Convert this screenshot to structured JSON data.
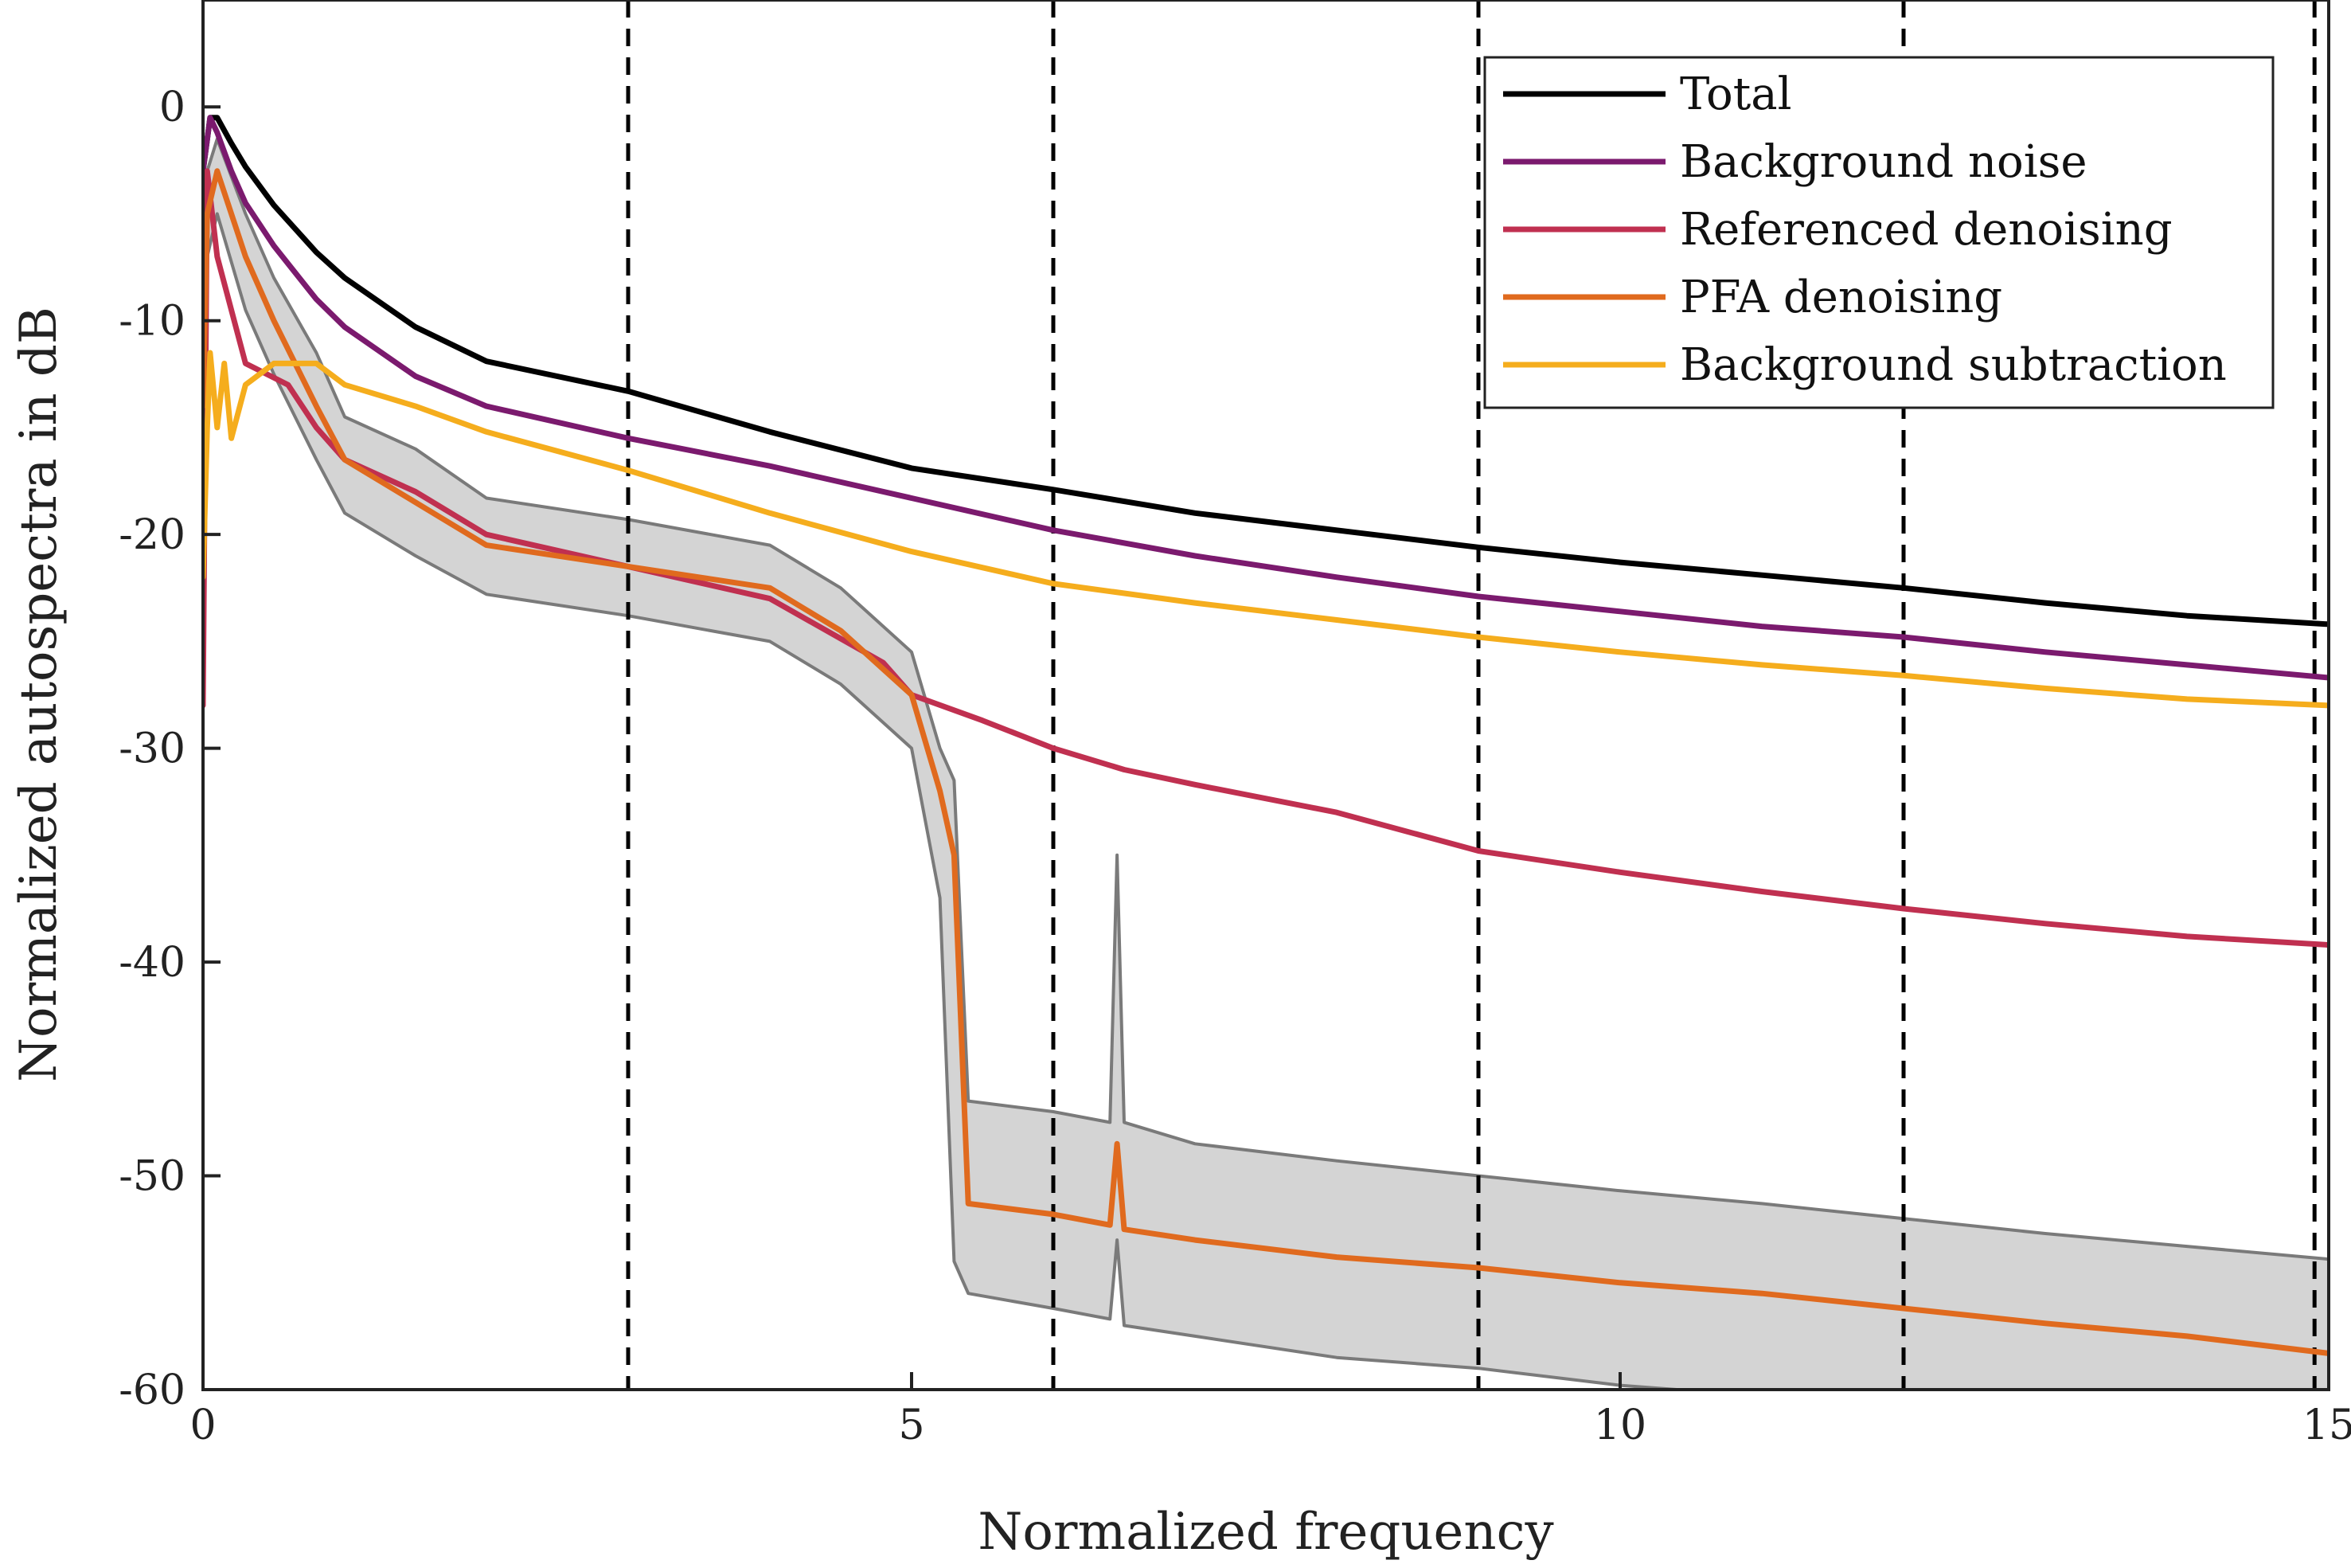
{
  "chart_data": {
    "type": "line",
    "title": "",
    "xlabel": "Normalized frequency",
    "ylabel": "Normalized autospectra in dB",
    "xlim": [
      0,
      15
    ],
    "ylim": [
      -60,
      5
    ],
    "x_ticks": [
      0,
      5,
      10,
      15
    ],
    "x_tick_labels": [
      "0",
      "5",
      "10",
      "15"
    ],
    "y_ticks": [
      0,
      -10,
      -20,
      -30,
      -40,
      -50,
      -60
    ],
    "y_tick_labels": [
      "0",
      "-10",
      "-20",
      "-30",
      "-40",
      "-50",
      "-60"
    ],
    "grid": false,
    "legend_position": "top-right",
    "vertical_dashed_lines_x": [
      3,
      6,
      9,
      12,
      14.9
    ],
    "series": [
      {
        "name": "Total",
        "color": "#000000",
        "x": [
          0,
          0.05,
          0.1,
          0.2,
          0.3,
          0.5,
          0.8,
          1.0,
          1.5,
          2.0,
          3.0,
          4.0,
          5.0,
          6.0,
          7.0,
          8.0,
          9.0,
          10.0,
          11.0,
          12.0,
          13.0,
          14.0,
          15.0
        ],
        "y": [
          -3,
          -0.5,
          -0.5,
          -1.7,
          -2.8,
          -4.6,
          -6.8,
          -8,
          -10.3,
          -11.9,
          -13.3,
          -15.2,
          -16.9,
          -17.9,
          -19,
          -19.8,
          -20.6,
          -21.3,
          -21.9,
          -22.5,
          -23.2,
          -23.8,
          -24.2
        ]
      },
      {
        "name": "Background noise",
        "color": "#7b1a6e",
        "x": [
          0,
          0.05,
          0.1,
          0.2,
          0.3,
          0.5,
          0.8,
          1.0,
          1.5,
          2.0,
          3.0,
          4.0,
          5.0,
          6.0,
          7.0,
          8.0,
          9.0,
          10.0,
          11.0,
          12.0,
          13.0,
          14.0,
          15.0
        ],
        "y": [
          -3,
          -0.5,
          -1.2,
          -3,
          -4.5,
          -6.5,
          -9,
          -10.3,
          -12.6,
          -14,
          -15.5,
          -16.8,
          -18.3,
          -19.8,
          -21,
          -22,
          -22.9,
          -23.6,
          -24.3,
          -24.8,
          -25.5,
          -26.1,
          -26.7
        ]
      },
      {
        "name": "Referenced denoising",
        "color": "#c03050",
        "x": [
          0,
          0.03,
          0.1,
          0.3,
          0.6,
          0.8,
          1.0,
          1.5,
          2.0,
          3.0,
          4.0,
          4.8,
          5.0,
          5.5,
          6.0,
          6.5,
          7.0,
          8.0,
          9.0,
          10.0,
          11.0,
          12.0,
          13.0,
          14.0,
          15.0
        ],
        "y": [
          -28,
          -3,
          -7,
          -12,
          -13,
          -15,
          -16.5,
          -18,
          -20,
          -21.5,
          -23,
          -26,
          -27.5,
          -28.7,
          -30,
          -31,
          -31.7,
          -33,
          -34.8,
          -35.8,
          -36.7,
          -37.5,
          -38.2,
          -38.8,
          -39.2
        ]
      },
      {
        "name": "PFA denoising",
        "color": "#e06a1e",
        "x": [
          0,
          0.03,
          0.1,
          0.3,
          0.5,
          0.8,
          1.0,
          1.5,
          2.0,
          3.0,
          4.0,
          4.5,
          5.0,
          5.2,
          5.3,
          5.4,
          6.0,
          6.4,
          6.45,
          6.5,
          7.0,
          8.0,
          9.0,
          10.0,
          11.0,
          12.0,
          13.0,
          14.0,
          15.0
        ],
        "y": [
          -14,
          -5,
          -3,
          -7,
          -10,
          -14,
          -16.5,
          -18.5,
          -20.5,
          -21.5,
          -22.5,
          -24.5,
          -27.5,
          -32,
          -35,
          -51.3,
          -51.8,
          -52.3,
          -48.5,
          -52.5,
          -53,
          -53.8,
          -54.3,
          -55,
          -55.5,
          -56.2,
          -56.9,
          -57.5,
          -58.3
        ]
      },
      {
        "name": "Background subtraction",
        "color": "#f5ad1d",
        "x": [
          0,
          0.03,
          0.05,
          0.1,
          0.15,
          0.2,
          0.3,
          0.5,
          0.8,
          1.0,
          1.5,
          2.0,
          3.0,
          4.0,
          5.0,
          6.0,
          7.0,
          8.0,
          9.0,
          10.0,
          11.0,
          12.0,
          13.0,
          14.0,
          15.0
        ],
        "y": [
          -22,
          -15,
          -11.5,
          -15,
          -12,
          -15.5,
          -13,
          -12,
          -12,
          -13,
          -14,
          -15.2,
          -17,
          -19,
          -20.8,
          -22.3,
          -23.2,
          -24,
          -24.8,
          -25.5,
          -26.1,
          -26.6,
          -27.2,
          -27.7,
          -28
        ]
      }
    ],
    "uncertainty_band": {
      "color": "#d4d4d4",
      "edge_color": "#7a7a7a",
      "x": [
        0,
        0.03,
        0.1,
        0.3,
        0.5,
        0.8,
        1.0,
        1.5,
        2.0,
        3.0,
        4.0,
        4.5,
        5.0,
        5.2,
        5.3,
        5.4,
        6.0,
        6.4,
        6.45,
        6.5,
        7.0,
        8.0,
        9.0,
        10.0,
        11.0,
        12.0,
        13.0,
        14.0,
        15.0
      ],
      "upper": [
        -14,
        -3,
        -1.5,
        -5,
        -8,
        -11.5,
        -14.5,
        -16,
        -18.3,
        -19.3,
        -20.5,
        -22.5,
        -25.5,
        -30,
        -31.5,
        -46.5,
        -47,
        -47.5,
        -35,
        -47.5,
        -48.5,
        -49.3,
        -50,
        -50.7,
        -51.3,
        -52,
        -52.7,
        -53.3,
        -53.9
      ],
      "lower": [
        -14,
        -7,
        -5,
        -9.5,
        -12.5,
        -16.5,
        -19,
        -21,
        -22.8,
        -23.8,
        -25,
        -27,
        -30,
        -37,
        -54,
        -55.5,
        -56.2,
        -56.7,
        -53,
        -57,
        -57.5,
        -58.5,
        -59,
        -59.8,
        -60.3,
        -61,
        -61.5,
        -62,
        -62.5
      ]
    }
  }
}
